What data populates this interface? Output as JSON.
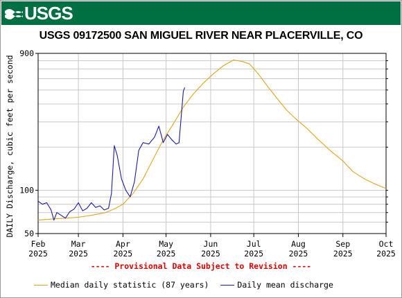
{
  "header": {
    "logo_text": "USGS",
    "title": "USGS 09172500 SAN MIGUEL RIVER NEAR PLACERVILLE, CO"
  },
  "colors": {
    "banner": "#006f41",
    "median": "#e6a31a",
    "discharge": "#1a1aa8",
    "provisional": "#e00000",
    "grid": "#c8c8c8"
  },
  "notice": "---- Provisional Data Subject to Revision ----",
  "legend": {
    "median_label": "Median daily statistic (87 years)",
    "discharge_label": "Daily mean discharge"
  },
  "chart_data": {
    "type": "line",
    "title": "USGS 09172500 SAN MIGUEL RIVER NEAR PLACERVILLE, CO",
    "ylabel": "DAILY Discharge, cubic feet per second",
    "yscale": "log",
    "ylim": [
      50,
      900
    ],
    "yticks": [
      50,
      100,
      900
    ],
    "xlim": [
      "2025-02-01",
      "2025-10-01"
    ],
    "xticks": [
      {
        "date": "2025-02-01",
        "month": "Feb",
        "year": "2025"
      },
      {
        "date": "2025-03-01",
        "month": "Mar",
        "year": "2025"
      },
      {
        "date": "2025-04-01",
        "month": "Apr",
        "year": "2025"
      },
      {
        "date": "2025-05-01",
        "month": "May",
        "year": "2025"
      },
      {
        "date": "2025-06-01",
        "month": "Jun",
        "year": "2025"
      },
      {
        "date": "2025-07-01",
        "month": "Jul",
        "year": "2025"
      },
      {
        "date": "2025-08-01",
        "month": "Aug",
        "year": "2025"
      },
      {
        "date": "2025-09-01",
        "month": "Sep",
        "year": "2025"
      },
      {
        "date": "2025-10-01",
        "month": "Oct",
        "year": "2025"
      }
    ],
    "grid": true,
    "legend_position": "bottom",
    "series": [
      {
        "name": "Median daily statistic (87 years)",
        "color": "#e6a31a",
        "points": [
          [
            "2025-02-01",
            62
          ],
          [
            "2025-02-10",
            63
          ],
          [
            "2025-02-20",
            64
          ],
          [
            "2025-03-01",
            65
          ],
          [
            "2025-03-10",
            67
          ],
          [
            "2025-03-20",
            70
          ],
          [
            "2025-03-27",
            75
          ],
          [
            "2025-04-01",
            80
          ],
          [
            "2025-04-08",
            95
          ],
          [
            "2025-04-15",
            120
          ],
          [
            "2025-04-22",
            165
          ],
          [
            "2025-04-29",
            225
          ],
          [
            "2025-05-06",
            290
          ],
          [
            "2025-05-13",
            380
          ],
          [
            "2025-05-20",
            470
          ],
          [
            "2025-05-27",
            560
          ],
          [
            "2025-06-03",
            650
          ],
          [
            "2025-06-10",
            740
          ],
          [
            "2025-06-17",
            810
          ],
          [
            "2025-06-23",
            790
          ],
          [
            "2025-06-28",
            760
          ],
          [
            "2025-07-04",
            650
          ],
          [
            "2025-07-10",
            540
          ],
          [
            "2025-07-17",
            440
          ],
          [
            "2025-07-24",
            360
          ],
          [
            "2025-07-31",
            310
          ],
          [
            "2025-08-07",
            270
          ],
          [
            "2025-08-15",
            225
          ],
          [
            "2025-08-23",
            190
          ],
          [
            "2025-09-01",
            160
          ],
          [
            "2025-09-08",
            135
          ],
          [
            "2025-09-16",
            120
          ],
          [
            "2025-09-24",
            110
          ],
          [
            "2025-10-01",
            103
          ]
        ]
      },
      {
        "name": "Daily mean discharge",
        "color": "#1a1aa8",
        "points": [
          [
            "2025-02-01",
            84
          ],
          [
            "2025-02-04",
            80
          ],
          [
            "2025-02-07",
            82
          ],
          [
            "2025-02-10",
            73
          ],
          [
            "2025-02-12",
            62
          ],
          [
            "2025-02-14",
            70
          ],
          [
            "2025-02-17",
            67
          ],
          [
            "2025-02-20",
            64
          ],
          [
            "2025-02-23",
            71
          ],
          [
            "2025-02-26",
            74
          ],
          [
            "2025-03-01",
            82
          ],
          [
            "2025-03-04",
            72
          ],
          [
            "2025-03-07",
            75
          ],
          [
            "2025-03-10",
            82
          ],
          [
            "2025-03-13",
            76
          ],
          [
            "2025-03-16",
            78
          ],
          [
            "2025-03-19",
            73
          ],
          [
            "2025-03-22",
            75
          ],
          [
            "2025-03-24",
            95
          ],
          [
            "2025-03-26",
            205
          ],
          [
            "2025-03-28",
            175
          ],
          [
            "2025-03-31",
            120
          ],
          [
            "2025-04-03",
            100
          ],
          [
            "2025-04-06",
            90
          ],
          [
            "2025-04-09",
            115
          ],
          [
            "2025-04-12",
            190
          ],
          [
            "2025-04-15",
            215
          ],
          [
            "2025-04-19",
            210
          ],
          [
            "2025-04-23",
            235
          ],
          [
            "2025-04-26",
            280
          ],
          [
            "2025-04-29",
            215
          ],
          [
            "2025-05-02",
            245
          ],
          [
            "2025-05-05",
            225
          ],
          [
            "2025-05-08",
            210
          ],
          [
            "2025-05-10",
            215
          ],
          [
            "2025-05-13",
            490
          ],
          [
            "2025-05-14",
            520
          ]
        ]
      }
    ]
  }
}
